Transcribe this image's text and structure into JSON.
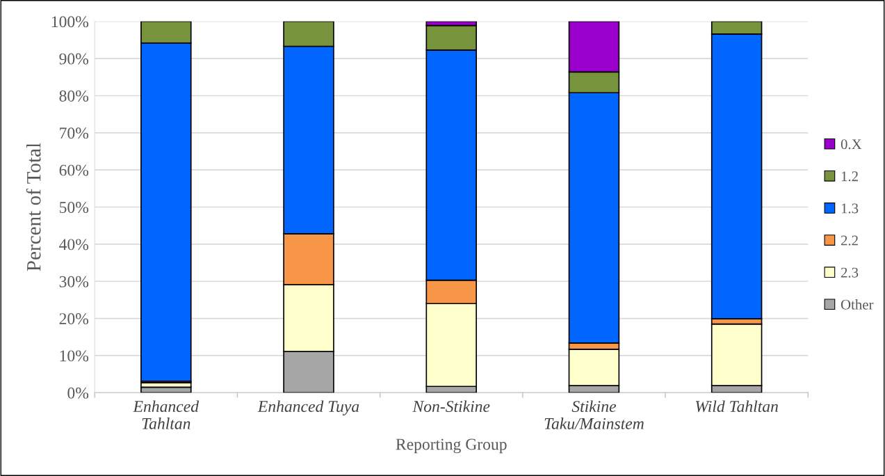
{
  "chart_data": {
    "type": "bar",
    "stacked": true,
    "xlabel": "Reporting Group",
    "ylabel": "Percent of Total",
    "categories": [
      "Enhanced\nTahltan",
      "Enhanced Tuya",
      "Non-Stikine",
      "Stikine\nTaku/Mainstem",
      "Wild Tahltan"
    ],
    "series": [
      {
        "name": "Other",
        "color": "#a6a6a6",
        "values": [
          1.5,
          11.1,
          1.7,
          1.9,
          1.9
        ]
      },
      {
        "name": "2.3",
        "color": "#ffffcc",
        "values": [
          1.2,
          18.0,
          22.3,
          9.8,
          16.6
        ]
      },
      {
        "name": "2.2",
        "color": "#f79646",
        "values": [
          0.4,
          13.7,
          6.3,
          1.7,
          1.4
        ]
      },
      {
        "name": "1.3",
        "color": "#0066ff",
        "values": [
          91.1,
          50.5,
          62.0,
          67.4,
          76.7
        ]
      },
      {
        "name": "1.2",
        "color": "#77933c",
        "values": [
          5.8,
          6.7,
          6.6,
          5.6,
          3.4
        ]
      },
      {
        "name": "0.X",
        "color": "#9900cc",
        "values": [
          null,
          null,
          1.1,
          13.6,
          null
        ]
      }
    ],
    "ylim": [
      0,
      100
    ],
    "yticks": [
      {
        "value": 0,
        "label": "0%"
      },
      {
        "value": 10,
        "label": "10%"
      },
      {
        "value": 20,
        "label": "20%"
      },
      {
        "value": 30,
        "label": "30%"
      },
      {
        "value": 40,
        "label": "40%"
      },
      {
        "value": 50,
        "label": "50%"
      },
      {
        "value": 60,
        "label": "60%"
      },
      {
        "value": 70,
        "label": "70%"
      },
      {
        "value": 80,
        "label": "80%"
      },
      {
        "value": 90,
        "label": "90%"
      },
      {
        "value": 100,
        "label": "100%"
      }
    ],
    "grid": "y",
    "legend": "right"
  }
}
